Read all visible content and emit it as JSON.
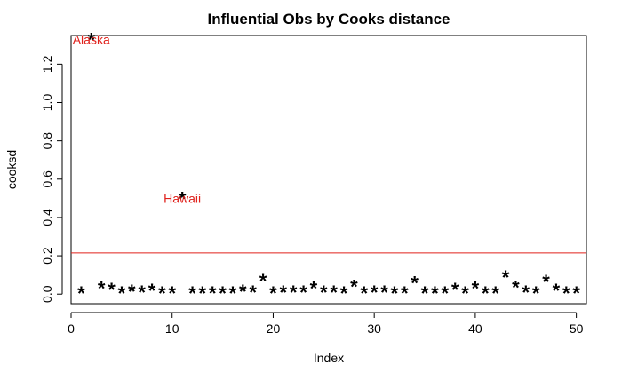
{
  "chart_data": {
    "type": "scatter",
    "title": "Influential Obs by Cooks distance",
    "xlabel": "Index",
    "ylabel": "cooksd",
    "xlim": [
      0,
      51
    ],
    "ylim": [
      -0.05,
      1.35
    ],
    "x_ticks": [
      0,
      10,
      20,
      30,
      40,
      50
    ],
    "y_ticks": [
      0.0,
      0.2,
      0.4,
      0.6,
      0.8,
      1.0,
      1.2
    ],
    "y_tick_labels": [
      "0.0",
      "0.2",
      "0.4",
      "0.6",
      "0.8",
      "1.0",
      "1.2"
    ],
    "marker": "*",
    "grid": false,
    "threshold": {
      "value": 0.215,
      "color": "#e0201b"
    },
    "series": [
      {
        "x": [
          1,
          2,
          3,
          4,
          5,
          6,
          7,
          8,
          9,
          10,
          11,
          12,
          13,
          14,
          15,
          16,
          17,
          18,
          19,
          20,
          21,
          22,
          23,
          24,
          25,
          26,
          27,
          28,
          29,
          30,
          31,
          32,
          33,
          34,
          35,
          36,
          37,
          38,
          39,
          40,
          41,
          42,
          43,
          44,
          45,
          46,
          47,
          48,
          49,
          50
        ],
        "y": [
          0.005,
          1.33,
          0.03,
          0.025,
          0.005,
          0.015,
          0.01,
          0.02,
          0.005,
          0.005,
          0.5,
          0.005,
          0.005,
          0.005,
          0.005,
          0.005,
          0.015,
          0.01,
          0.07,
          0.005,
          0.01,
          0.01,
          0.01,
          0.03,
          0.01,
          0.01,
          0.005,
          0.04,
          0.005,
          0.01,
          0.01,
          0.005,
          0.005,
          0.06,
          0.005,
          0.005,
          0.005,
          0.025,
          0.005,
          0.03,
          0.005,
          0.005,
          0.09,
          0.035,
          0.01,
          0.005,
          0.065,
          0.02,
          0.005,
          0.005
        ]
      }
    ],
    "annotations": [
      {
        "x": 2,
        "y": 1.33,
        "text": "Alaska",
        "color": "#e0201b"
      },
      {
        "x": 11,
        "y": 0.5,
        "text": "Hawaii",
        "color": "#e0201b"
      }
    ]
  }
}
